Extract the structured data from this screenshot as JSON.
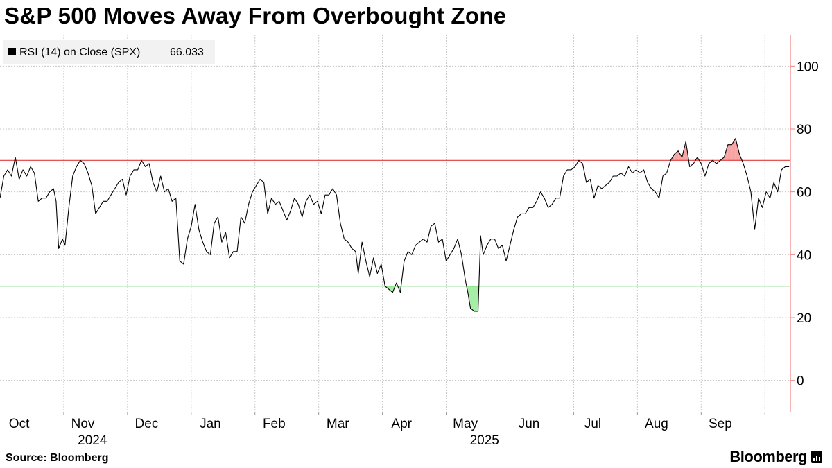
{
  "title": "S&P 500 Moves Away From Overbought Zone",
  "source": "Source: Bloomberg",
  "brand": "Bloomberg",
  "colors": {
    "line": "#000000",
    "overbought": "#e03c3c",
    "oversold": "#3fc33f",
    "overbought_fill": "#f6a5a5",
    "oversold_fill": "#a6eea6",
    "grid": "#c8c8c8",
    "right_axis": "#f08080",
    "legend_bg": "#f2f2f2"
  },
  "chart_data": {
    "type": "line",
    "title": "S&P 500 Moves Away From Overbought Zone",
    "legend": {
      "label": "RSI (14)  on Close (SPX)",
      "last_value": "66.033",
      "position": "top-left"
    },
    "ylim": [
      -10,
      110
    ],
    "yticks": [
      0,
      20,
      40,
      60,
      80,
      100
    ],
    "overbought_level": 70,
    "oversold_level": 30,
    "grid": true,
    "x_axis": {
      "range": [
        0,
        12.4
      ],
      "months": [
        {
          "label": "Oct",
          "pos": 0.3
        },
        {
          "label": "Nov",
          "pos": 1.3
        },
        {
          "label": "Dec",
          "pos": 2.3
        },
        {
          "label": "Jan",
          "pos": 3.3
        },
        {
          "label": "Feb",
          "pos": 4.3
        },
        {
          "label": "Mar",
          "pos": 5.3
        },
        {
          "label": "Apr",
          "pos": 6.3
        },
        {
          "label": "May",
          "pos": 7.3
        },
        {
          "label": "Jun",
          "pos": 8.3
        },
        {
          "label": "Jul",
          "pos": 9.3
        },
        {
          "label": "Aug",
          "pos": 10.3
        },
        {
          "label": "Sep",
          "pos": 11.3
        }
      ],
      "years": [
        {
          "label": "2024",
          "pos": 1.45
        },
        {
          "label": "2025",
          "pos": 7.6
        }
      ]
    },
    "series": [
      {
        "points": [
          [
            0.0,
            58
          ],
          [
            0.06,
            65
          ],
          [
            0.12,
            67
          ],
          [
            0.18,
            65
          ],
          [
            0.24,
            71
          ],
          [
            0.3,
            64
          ],
          [
            0.36,
            67
          ],
          [
            0.42,
            65
          ],
          [
            0.48,
            68
          ],
          [
            0.54,
            66
          ],
          [
            0.6,
            57
          ],
          [
            0.66,
            58
          ],
          [
            0.72,
            58
          ],
          [
            0.78,
            60
          ],
          [
            0.84,
            61
          ],
          [
            0.88,
            57
          ],
          [
            0.92,
            42
          ],
          [
            0.98,
            45
          ],
          [
            1.02,
            43
          ],
          [
            1.08,
            55
          ],
          [
            1.14,
            65
          ],
          [
            1.2,
            68
          ],
          [
            1.26,
            70
          ],
          [
            1.32,
            69
          ],
          [
            1.38,
            66
          ],
          [
            1.44,
            62
          ],
          [
            1.5,
            53
          ],
          [
            1.56,
            55
          ],
          [
            1.62,
            57
          ],
          [
            1.68,
            57
          ],
          [
            1.74,
            59
          ],
          [
            1.8,
            61
          ],
          [
            1.86,
            63
          ],
          [
            1.92,
            64
          ],
          [
            1.98,
            59
          ],
          [
            2.04,
            65
          ],
          [
            2.1,
            67
          ],
          [
            2.16,
            67
          ],
          [
            2.22,
            70
          ],
          [
            2.28,
            68
          ],
          [
            2.34,
            69
          ],
          [
            2.4,
            63
          ],
          [
            2.46,
            60
          ],
          [
            2.52,
            65
          ],
          [
            2.58,
            60
          ],
          [
            2.64,
            61
          ],
          [
            2.7,
            57
          ],
          [
            2.76,
            58
          ],
          [
            2.82,
            38
          ],
          [
            2.88,
            37
          ],
          [
            2.94,
            45
          ],
          [
            3.0,
            49
          ],
          [
            3.06,
            56
          ],
          [
            3.12,
            48
          ],
          [
            3.18,
            44
          ],
          [
            3.24,
            41
          ],
          [
            3.3,
            40
          ],
          [
            3.36,
            50
          ],
          [
            3.42,
            52
          ],
          [
            3.48,
            44
          ],
          [
            3.54,
            47
          ],
          [
            3.6,
            39
          ],
          [
            3.66,
            41
          ],
          [
            3.72,
            41
          ],
          [
            3.78,
            52
          ],
          [
            3.84,
            50
          ],
          [
            3.9,
            56
          ],
          [
            3.96,
            60
          ],
          [
            4.02,
            62
          ],
          [
            4.08,
            64
          ],
          [
            4.14,
            63
          ],
          [
            4.2,
            53
          ],
          [
            4.26,
            58
          ],
          [
            4.32,
            56
          ],
          [
            4.38,
            57
          ],
          [
            4.44,
            54
          ],
          [
            4.5,
            51
          ],
          [
            4.56,
            54
          ],
          [
            4.62,
            58
          ],
          [
            4.68,
            56
          ],
          [
            4.74,
            52
          ],
          [
            4.8,
            57
          ],
          [
            4.86,
            59
          ],
          [
            4.92,
            56
          ],
          [
            4.98,
            57
          ],
          [
            5.04,
            53
          ],
          [
            5.1,
            59
          ],
          [
            5.16,
            59
          ],
          [
            5.22,
            61
          ],
          [
            5.28,
            59
          ],
          [
            5.34,
            50
          ],
          [
            5.4,
            45
          ],
          [
            5.46,
            44
          ],
          [
            5.52,
            42
          ],
          [
            5.58,
            41
          ],
          [
            5.62,
            34
          ],
          [
            5.68,
            44
          ],
          [
            5.74,
            38
          ],
          [
            5.8,
            33
          ],
          [
            5.86,
            39
          ],
          [
            5.92,
            34
          ],
          [
            5.98,
            37
          ],
          [
            6.04,
            30
          ],
          [
            6.1,
            29
          ],
          [
            6.16,
            28
          ],
          [
            6.22,
            31
          ],
          [
            6.28,
            28
          ],
          [
            6.34,
            38
          ],
          [
            6.4,
            41
          ],
          [
            6.46,
            40
          ],
          [
            6.52,
            43
          ],
          [
            6.58,
            44
          ],
          [
            6.64,
            45
          ],
          [
            6.7,
            44
          ],
          [
            6.76,
            49
          ],
          [
            6.82,
            50
          ],
          [
            6.88,
            44
          ],
          [
            6.94,
            45
          ],
          [
            7.0,
            38
          ],
          [
            7.06,
            40
          ],
          [
            7.12,
            42
          ],
          [
            7.18,
            45
          ],
          [
            7.24,
            40
          ],
          [
            7.3,
            32
          ],
          [
            7.34,
            28
          ],
          [
            7.38,
            23
          ],
          [
            7.44,
            22
          ],
          [
            7.5,
            22
          ],
          [
            7.54,
            46
          ],
          [
            7.58,
            40
          ],
          [
            7.64,
            43
          ],
          [
            7.7,
            45
          ],
          [
            7.76,
            45
          ],
          [
            7.82,
            42
          ],
          [
            7.88,
            43
          ],
          [
            7.94,
            38
          ],
          [
            8.0,
            43
          ],
          [
            8.06,
            48
          ],
          [
            8.12,
            52
          ],
          [
            8.18,
            53
          ],
          [
            8.24,
            53
          ],
          [
            8.3,
            55
          ],
          [
            8.36,
            55
          ],
          [
            8.42,
            57
          ],
          [
            8.48,
            60
          ],
          [
            8.54,
            58
          ],
          [
            8.6,
            55
          ],
          [
            8.66,
            56
          ],
          [
            8.72,
            58
          ],
          [
            8.78,
            58
          ],
          [
            8.84,
            65
          ],
          [
            8.9,
            67
          ],
          [
            8.96,
            67
          ],
          [
            9.02,
            68
          ],
          [
            9.08,
            70
          ],
          [
            9.14,
            69
          ],
          [
            9.2,
            63
          ],
          [
            9.26,
            64
          ],
          [
            9.32,
            58
          ],
          [
            9.38,
            62
          ],
          [
            9.44,
            61
          ],
          [
            9.5,
            62
          ],
          [
            9.56,
            63
          ],
          [
            9.62,
            65
          ],
          [
            9.68,
            65
          ],
          [
            9.74,
            66
          ],
          [
            9.8,
            65
          ],
          [
            9.86,
            68
          ],
          [
            9.92,
            66
          ],
          [
            9.98,
            67
          ],
          [
            10.04,
            66
          ],
          [
            10.1,
            67
          ],
          [
            10.16,
            63
          ],
          [
            10.22,
            61
          ],
          [
            10.28,
            60
          ],
          [
            10.34,
            58
          ],
          [
            10.4,
            65
          ],
          [
            10.46,
            66
          ],
          [
            10.52,
            70
          ],
          [
            10.58,
            72
          ],
          [
            10.64,
            73
          ],
          [
            10.7,
            71
          ],
          [
            10.76,
            76
          ],
          [
            10.82,
            68
          ],
          [
            10.88,
            69
          ],
          [
            10.94,
            71
          ],
          [
            11.0,
            69
          ],
          [
            11.06,
            65
          ],
          [
            11.12,
            69
          ],
          [
            11.18,
            70
          ],
          [
            11.24,
            69
          ],
          [
            11.3,
            70
          ],
          [
            11.36,
            71
          ],
          [
            11.42,
            75
          ],
          [
            11.48,
            75
          ],
          [
            11.54,
            77
          ],
          [
            11.6,
            72
          ],
          [
            11.66,
            69
          ],
          [
            11.72,
            65
          ],
          [
            11.78,
            60
          ],
          [
            11.84,
            48
          ],
          [
            11.9,
            58
          ],
          [
            11.96,
            55
          ],
          [
            12.02,
            60
          ],
          [
            12.08,
            58
          ],
          [
            12.14,
            63
          ],
          [
            12.2,
            60
          ],
          [
            12.26,
            67
          ],
          [
            12.32,
            68
          ],
          [
            12.38,
            68
          ]
        ]
      }
    ]
  }
}
